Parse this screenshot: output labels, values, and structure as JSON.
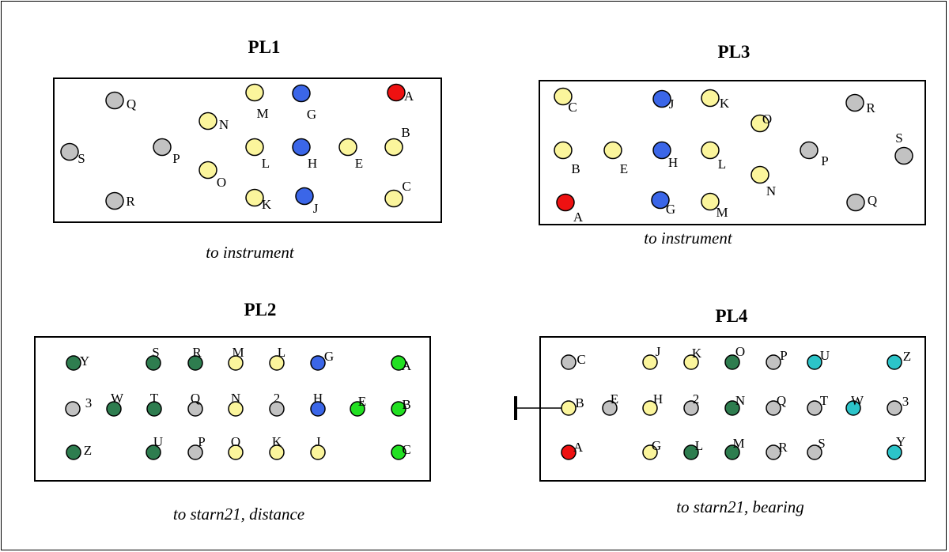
{
  "colors": {
    "red": "#ee1111",
    "blue": "#3b66e8",
    "yellow": "#fbf59c",
    "gray": "#c2c2c2",
    "dark-green": "#2e7d4f",
    "bright-green": "#22e022",
    "cyan": "#2cc4c9"
  },
  "panels": [
    {
      "id": "pl1",
      "title": "PL1",
      "caption": "to instrument",
      "nodes": [
        {
          "label": "Q",
          "color": "gray"
        },
        {
          "label": "N",
          "color": "yellow"
        },
        {
          "label": "M",
          "color": "yellow"
        },
        {
          "label": "G",
          "color": "blue"
        },
        {
          "label": "A",
          "color": "red"
        },
        {
          "label": "S",
          "color": "gray"
        },
        {
          "label": "P",
          "color": "gray"
        },
        {
          "label": "L",
          "color": "yellow"
        },
        {
          "label": "H",
          "color": "blue"
        },
        {
          "label": "E",
          "color": "yellow"
        },
        {
          "label": "B",
          "color": "yellow"
        },
        {
          "label": "O",
          "color": "yellow"
        },
        {
          "label": "R",
          "color": "gray"
        },
        {
          "label": "K",
          "color": "yellow"
        },
        {
          "label": "J",
          "color": "blue"
        },
        {
          "label": "C",
          "color": "yellow"
        }
      ]
    },
    {
      "id": "pl3",
      "title": "PL3",
      "caption": "to instrument",
      "nodes": [
        {
          "label": "C",
          "color": "yellow"
        },
        {
          "label": "J",
          "color": "blue"
        },
        {
          "label": "K",
          "color": "yellow"
        },
        {
          "label": "O",
          "color": "yellow"
        },
        {
          "label": "R",
          "color": "gray"
        },
        {
          "label": "S",
          "color": "gray"
        },
        {
          "label": "B",
          "color": "yellow"
        },
        {
          "label": "E",
          "color": "yellow"
        },
        {
          "label": "H",
          "color": "blue"
        },
        {
          "label": "L",
          "color": "yellow"
        },
        {
          "label": "P",
          "color": "gray"
        },
        {
          "label": "N",
          "color": "yellow"
        },
        {
          "label": "A",
          "color": "red"
        },
        {
          "label": "G",
          "color": "blue"
        },
        {
          "label": "M",
          "color": "yellow"
        },
        {
          "label": "Q",
          "color": "gray"
        }
      ]
    },
    {
      "id": "pl2",
      "title": "PL2",
      "caption": "to starn21, distance",
      "nodes": [
        {
          "label": "Y",
          "color": "dark-green"
        },
        {
          "label": "S",
          "color": "dark-green"
        },
        {
          "label": "R",
          "color": "dark-green"
        },
        {
          "label": "M",
          "color": "yellow"
        },
        {
          "label": "L",
          "color": "yellow"
        },
        {
          "label": "G",
          "color": "blue"
        },
        {
          "label": "A",
          "color": "bright-green"
        },
        {
          "label": "3",
          "color": "gray"
        },
        {
          "label": "W",
          "color": "dark-green"
        },
        {
          "label": "T",
          "color": "dark-green"
        },
        {
          "label": "Q",
          "color": "gray"
        },
        {
          "label": "N",
          "color": "yellow"
        },
        {
          "label": "2",
          "color": "gray"
        },
        {
          "label": "H",
          "color": "blue"
        },
        {
          "label": "E",
          "color": "bright-green"
        },
        {
          "label": "B",
          "color": "bright-green"
        },
        {
          "label": "Z",
          "color": "dark-green"
        },
        {
          "label": "U",
          "color": "dark-green"
        },
        {
          "label": "P",
          "color": "gray"
        },
        {
          "label": "O",
          "color": "yellow"
        },
        {
          "label": "K",
          "color": "yellow"
        },
        {
          "label": "J",
          "color": "yellow"
        },
        {
          "label": "C",
          "color": "bright-green"
        }
      ]
    },
    {
      "id": "pl4",
      "title": "PL4",
      "caption": "to starn21, bearing",
      "nodes": [
        {
          "label": "C",
          "color": "gray"
        },
        {
          "label": "J",
          "color": "yellow"
        },
        {
          "label": "K",
          "color": "yellow"
        },
        {
          "label": "O",
          "color": "dark-green"
        },
        {
          "label": "P",
          "color": "gray"
        },
        {
          "label": "U",
          "color": "cyan"
        },
        {
          "label": "Z",
          "color": "cyan"
        },
        {
          "label": "B",
          "color": "yellow"
        },
        {
          "label": "E",
          "color": "gray"
        },
        {
          "label": "H",
          "color": "yellow"
        },
        {
          "label": "2",
          "color": "gray"
        },
        {
          "label": "N",
          "color": "dark-green"
        },
        {
          "label": "Q",
          "color": "gray"
        },
        {
          "label": "T",
          "color": "gray"
        },
        {
          "label": "W",
          "color": "cyan"
        },
        {
          "label": "3",
          "color": "gray"
        },
        {
          "label": "A",
          "color": "red"
        },
        {
          "label": "G",
          "color": "yellow"
        },
        {
          "label": "L",
          "color": "dark-green"
        },
        {
          "label": "M",
          "color": "dark-green"
        },
        {
          "label": "R",
          "color": "gray"
        },
        {
          "label": "S",
          "color": "gray"
        },
        {
          "label": "Y",
          "color": "cyan"
        }
      ]
    }
  ]
}
